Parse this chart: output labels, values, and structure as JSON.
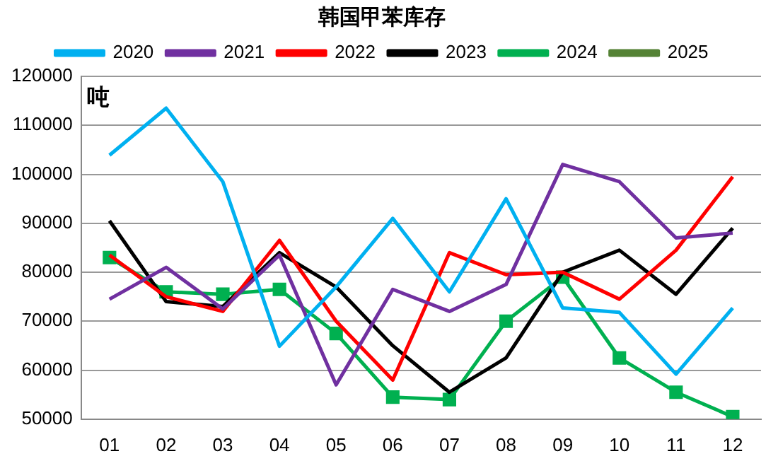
{
  "chart_data": {
    "type": "line",
    "title": "韩国甲苯库存",
    "ylabel": "吨",
    "categories": [
      "01",
      "02",
      "03",
      "04",
      "05",
      "06",
      "07",
      "08",
      "09",
      "10",
      "11",
      "12"
    ],
    "series": [
      {
        "name": "2020",
        "color": "#00b0f0",
        "values": [
          103900,
          113500,
          98500,
          64900,
          77000,
          91000,
          76000,
          95000,
          72700,
          71800,
          59200,
          72700
        ]
      },
      {
        "name": "2021",
        "color": "#7030a0",
        "values": [
          74500,
          81000,
          72500,
          83500,
          57000,
          76500,
          72000,
          77500,
          102000,
          98500,
          87000,
          88000
        ]
      },
      {
        "name": "2022",
        "color": "#ff0000",
        "values": [
          83500,
          75000,
          72000,
          86500,
          70000,
          58000,
          84000,
          79500,
          80000,
          74500,
          84500,
          99500
        ]
      },
      {
        "name": "2023",
        "color": "#000000",
        "values": [
          90500,
          74000,
          73000,
          84000,
          77000,
          65000,
          55500,
          62500,
          80000,
          84500,
          75500,
          89000
        ]
      },
      {
        "name": "2024",
        "color": "#00b050",
        "marker": "square",
        "values": [
          83000,
          76000,
          75500,
          76500,
          67500,
          54500,
          54000,
          70000,
          79000,
          62500,
          55500,
          50500
        ]
      },
      {
        "name": "2025",
        "color": "#548235",
        "values": [
          null,
          null,
          null,
          null,
          null,
          null,
          null,
          null,
          null,
          null,
          null,
          null
        ]
      }
    ],
    "ylim": [
      50000,
      120000
    ],
    "yticks": [
      50000,
      60000,
      70000,
      80000,
      90000,
      100000,
      110000,
      120000
    ],
    "grid": "y",
    "legend": "top",
    "marker": "none",
    "line_style": "solid"
  }
}
